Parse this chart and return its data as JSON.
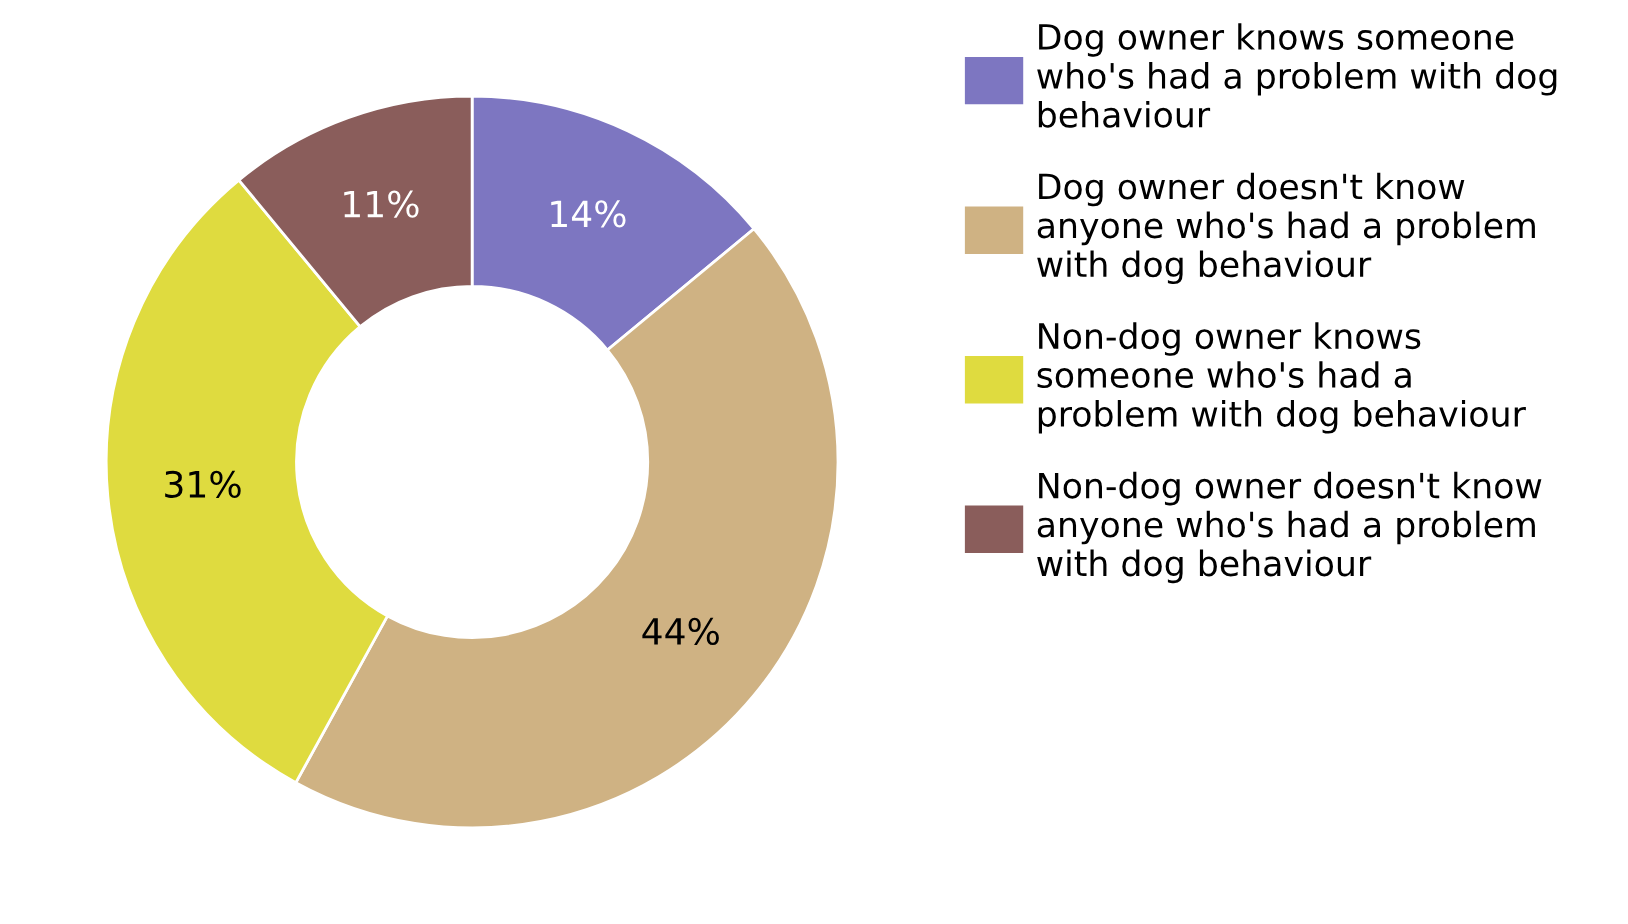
{
  "chart_data": {
    "type": "donut",
    "categories": [
      "Dog owner knows someone\nwho's had a problem with dog\nbehaviour",
      "Dog owner doesn't know\nanyone who's had a problem\nwith dog behaviour",
      "Non-dog owner knows\nsomeone who's had a\nproblem with dog behaviour",
      "Non-dog owner doesn't know\nanyone who's had a problem\nwith dog behaviour"
    ],
    "values": [
      14,
      44,
      31,
      11
    ],
    "colors": [
      "#7d76c1",
      "#cfb283",
      "#dfdb3f",
      "#8a5d5b"
    ],
    "value_labels": [
      "14%",
      "44%",
      "31%",
      "11%"
    ],
    "legend": "right"
  }
}
